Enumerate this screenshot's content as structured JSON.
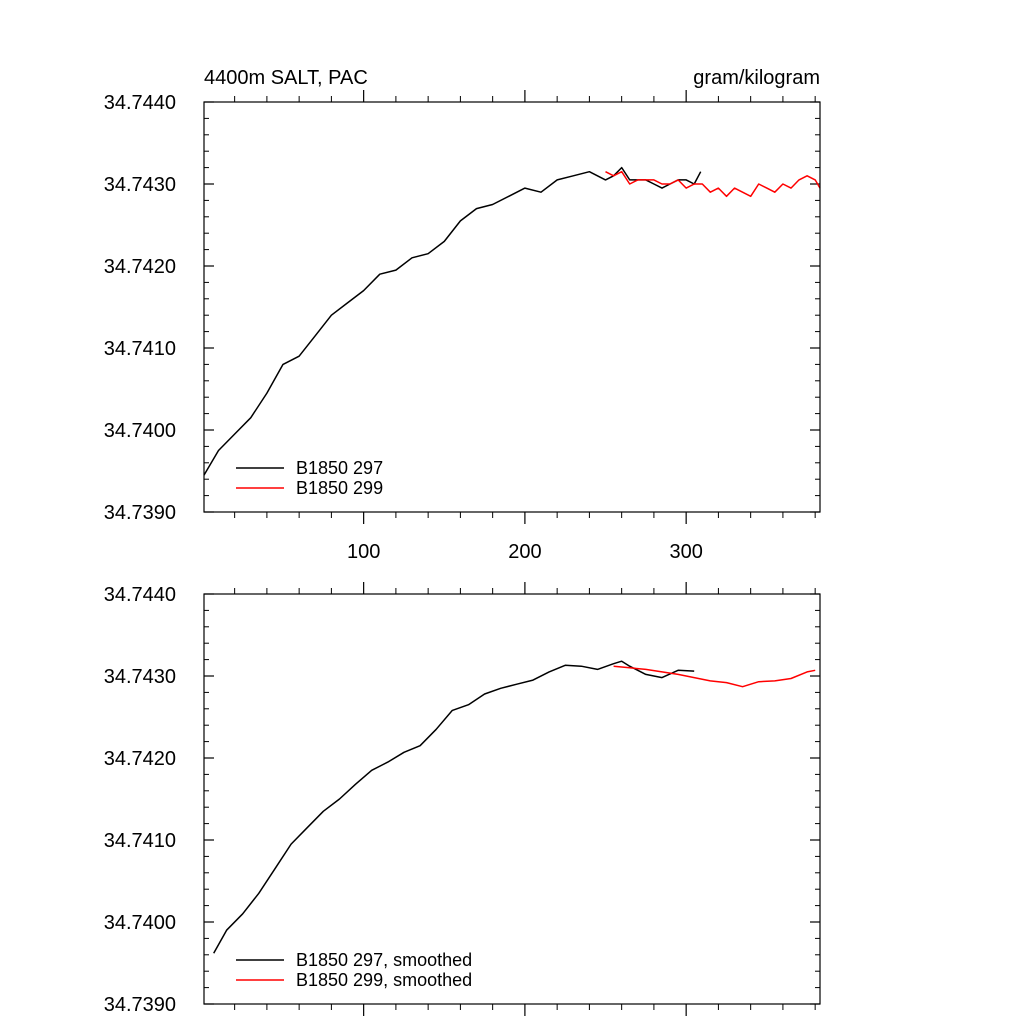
{
  "chart_data": [
    {
      "type": "line",
      "panel": "top",
      "title_left": "4400m SALT, PAC",
      "title_right": "gram/kilogram",
      "xlabel": "",
      "ylabel": "",
      "xlim": [
        1,
        383
      ],
      "ylim": [
        34.739,
        34.744
      ],
      "xticks": [
        100,
        200,
        300
      ],
      "xtick_labels": [
        "100",
        "200",
        "300"
      ],
      "yticks": [
        34.739,
        34.74,
        34.741,
        34.742,
        34.743,
        34.744
      ],
      "ytick_labels": [
        "34.7390",
        "34.7400",
        "34.7410",
        "34.7420",
        "34.7430",
        "34.7440"
      ],
      "legend_position": "bottom-left",
      "series": [
        {
          "name": "B1850 297",
          "color": "#000000",
          "x": [
            1,
            10,
            20,
            30,
            40,
            50,
            60,
            70,
            80,
            90,
            100,
            110,
            120,
            130,
            140,
            150,
            160,
            170,
            180,
            190,
            200,
            210,
            220,
            230,
            240,
            250,
            255,
            260,
            265,
            270,
            275,
            280,
            285,
            290,
            295,
            300,
            305,
            309
          ],
          "y": [
            34.73945,
            34.73975,
            34.73995,
            34.74015,
            34.74045,
            34.7408,
            34.7409,
            34.74115,
            34.7414,
            34.74155,
            34.7417,
            34.7419,
            34.74195,
            34.7421,
            34.74215,
            34.7423,
            34.74255,
            34.7427,
            34.74275,
            34.74285,
            34.74295,
            34.7429,
            34.74305,
            34.7431,
            34.74315,
            34.74305,
            34.7431,
            34.7432,
            34.74305,
            34.74305,
            34.74305,
            34.743,
            34.74295,
            34.743,
            34.74305,
            34.74305,
            34.743,
            34.74315
          ]
        },
        {
          "name": "B1850 299",
          "color": "#ff0000",
          "x": [
            250,
            255,
            260,
            265,
            270,
            275,
            280,
            285,
            290,
            295,
            300,
            305,
            310,
            315,
            320,
            325,
            330,
            335,
            340,
            345,
            350,
            355,
            360,
            365,
            370,
            375,
            380,
            383
          ],
          "y": [
            34.74315,
            34.7431,
            34.74315,
            34.743,
            34.74305,
            34.74305,
            34.74305,
            34.743,
            34.743,
            34.74305,
            34.74295,
            34.743,
            34.743,
            34.7429,
            34.74295,
            34.74285,
            34.74295,
            34.7429,
            34.74285,
            34.743,
            34.74295,
            34.7429,
            34.743,
            34.74295,
            34.74305,
            34.7431,
            34.74305,
            34.74295
          ]
        }
      ]
    },
    {
      "type": "line",
      "panel": "bottom",
      "xlabel": "",
      "ylabel": "",
      "xlim": [
        1,
        383
      ],
      "ylim": [
        34.739,
        34.744
      ],
      "xticks": [
        100,
        200,
        300
      ],
      "yticks": [
        34.739,
        34.74,
        34.741,
        34.742,
        34.743,
        34.744
      ],
      "ytick_labels": [
        "34.7390",
        "34.7400",
        "34.7410",
        "34.7420",
        "34.7430",
        "34.7440"
      ],
      "legend_position": "bottom-left",
      "series": [
        {
          "name": "B1850 297, smoothed",
          "color": "#000000",
          "x": [
            7,
            15,
            25,
            35,
            45,
            55,
            65,
            75,
            85,
            95,
            105,
            115,
            125,
            135,
            145,
            155,
            165,
            175,
            185,
            195,
            205,
            215,
            225,
            235,
            245,
            255,
            260,
            265,
            275,
            285,
            295,
            305
          ],
          "y": [
            34.73962,
            34.7399,
            34.7401,
            34.74035,
            34.74065,
            34.74095,
            34.74115,
            34.74135,
            34.7415,
            34.74168,
            34.74185,
            34.74195,
            34.74207,
            34.74215,
            34.74235,
            34.74258,
            34.74265,
            34.74278,
            34.74285,
            34.7429,
            34.74295,
            34.74305,
            34.74313,
            34.74312,
            34.74308,
            34.74315,
            34.74318,
            34.74312,
            34.74302,
            34.74298,
            34.74307,
            34.74306
          ]
        },
        {
          "name": "B1850 299, smoothed",
          "color": "#ff0000",
          "x": [
            255,
            265,
            275,
            285,
            295,
            305,
            315,
            325,
            335,
            345,
            355,
            365,
            375,
            380
          ],
          "y": [
            34.74312,
            34.7431,
            34.74308,
            34.74305,
            34.74302,
            34.74298,
            34.74294,
            34.74292,
            34.74287,
            34.74293,
            34.74294,
            34.74297,
            34.74305,
            34.74307
          ]
        }
      ]
    }
  ]
}
